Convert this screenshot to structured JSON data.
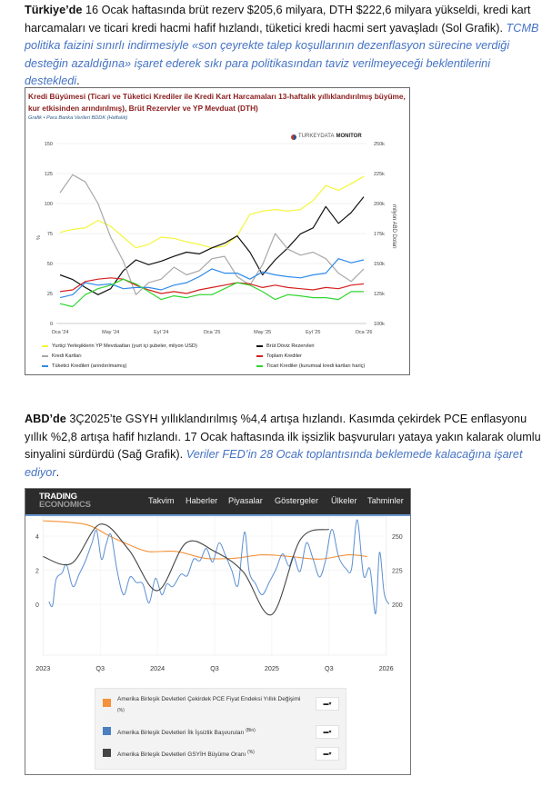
{
  "paragraph1": {
    "lead": "Türkiye’de",
    "text": " 16 Ocak haftasında brüt rezerv $205,6 milyara, DTH $222,6 milyara yükseldi, kredi kart harcamaları ve ticari kredi hacmi hafif hızlandı, tüketici kredi hacmi sert yavaşladı (Sol Grafik). ",
    "italic": "TCMB politika faizini sınırlı indirmesiyle «son çeyrekte talep koşullarının dezenflasyon sürecine verdiği desteğin azaldığına» işaret ederek sıkı para politikasından taviz verilmeyeceği beklentilerini destekledi",
    "end": "."
  },
  "paragraph2": {
    "lead": "ABD’de",
    "text": " 3Ç2025’te GSYH yıllıklandırılmış %4,4 artışa hızlandı. Kasımda çekirdek PCE enflasyonu yıllık %2,8 artışa hafif hızlandı. 17 Ocak haftasında ilk işsizlik başvuruları yataya yakın kalarak olumlu sinyalini sürdürdü (Sağ Grafik). ",
    "italic": "Veriler FED’in 28 Ocak toplantısında beklemede kalacağına işaret ediyor",
    "end": "."
  },
  "chart1_header": {
    "title": "Kredi Büyümesi (Ticari ve Tüketici Krediler ile Kredi Kart Harcamaları 13-haftalık yıllıklandırılmış büyüme, kur etkisinden arındırılmış), Brüt Rezervler ve YP Mevduat (DTH)",
    "subtitle": "Grafik • Para Banka Verileri BDDK (Haftalık)",
    "brand_light": "TURKEYDATA",
    "brand_bold": "MONITOR"
  },
  "chart2_header": {
    "logo_line1": "TRADING",
    "logo_line2": "ECONOMICS",
    "nav": [
      "Takvim",
      "Haberler",
      "Piyasalar",
      "Göstergeler",
      "Ülkeler",
      "Tahminler"
    ]
  },
  "chart_data": [
    {
      "type": "line",
      "ylabel": "%",
      "y2label": "milyon ABD Doları",
      "ylim": [
        0,
        150
      ],
      "y2lim": [
        100000,
        250000
      ],
      "yticks": [
        "0",
        "25",
        "50",
        "75",
        "100",
        "125",
        "150"
      ],
      "y2ticks": [
        "100k",
        "125k",
        "150k",
        "175k",
        "200k",
        "225k",
        "250k"
      ],
      "xticks": [
        {
          "x": "2024-01",
          "label": "Oca '24"
        },
        {
          "x": "2024-05",
          "label": "May '24"
        },
        {
          "x": "2024-09",
          "label": "Eyl '24"
        },
        {
          "x": "2025-01",
          "label": "Oca '25"
        },
        {
          "x": "2025-05",
          "label": "May '25"
        },
        {
          "x": "2025-09",
          "label": "Eyl '25"
        },
        {
          "x": "2026-01",
          "label": "Oca '26"
        }
      ],
      "grid": true,
      "legend": "bottom",
      "x": [
        "2024-01",
        "2024-02",
        "2024-03",
        "2024-04",
        "2024-05",
        "2024-06",
        "2024-07",
        "2024-08",
        "2024-09",
        "2024-10",
        "2024-11",
        "2024-12",
        "2025-01",
        "2025-02",
        "2025-03",
        "2025-04",
        "2025-05",
        "2025-06",
        "2025-07",
        "2025-08",
        "2025-09",
        "2025-10",
        "2025-11",
        "2025-12",
        "2026-01"
      ],
      "series": [
        {
          "name": "Yurtiçi Yerleşiklerin YP Mevduatları (yurt içi şubeler, milyon USD)",
          "color": "#f5f53a",
          "axis": "right",
          "values": [
            176000,
            178500,
            179700,
            186000,
            181000,
            172000,
            163000,
            166000,
            172000,
            171000,
            168000,
            166000,
            163000,
            164500,
            173000,
            191000,
            193700,
            195000,
            193700,
            195000,
            202500,
            215000,
            211000,
            216500,
            222600
          ]
        },
        {
          "name": "Brüt Döviz Rezervleri",
          "color": "#111111",
          "axis": "right",
          "values": [
            140500,
            136700,
            130000,
            124000,
            129000,
            144000,
            153000,
            149000,
            152000,
            156000,
            159500,
            158000,
            163000,
            167000,
            173000,
            159500,
            140500,
            153000,
            163000,
            174700,
            179700,
            197500,
            183500,
            192400,
            205600
          ]
        },
        {
          "name": "Kredi Kartları",
          "color": "#a8a8a8",
          "axis": "left",
          "values": [
            109,
            124,
            118,
            100,
            72,
            52,
            24,
            34,
            37,
            47,
            40.5,
            44,
            54,
            56,
            39,
            32,
            49,
            75,
            62,
            57,
            59.5,
            54,
            42,
            35,
            45.5
          ]
        },
        {
          "name": "Toplam Krediler",
          "color": "#d42020",
          "axis": "left",
          "values": [
            26.6,
            28,
            35,
            37,
            38,
            37,
            32,
            28,
            25,
            26.6,
            25,
            28,
            30,
            32,
            34,
            33,
            30,
            32,
            30,
            29,
            28,
            30,
            29,
            32,
            33
          ]
        },
        {
          "name": "Tüketici Kredileri (arındırılmamış)",
          "color": "#2f8ae8",
          "axis": "left",
          "values": [
            21.5,
            24,
            34,
            32,
            33,
            29,
            30,
            30,
            28,
            32,
            34,
            39,
            45.5,
            42,
            42,
            37,
            43,
            40.5,
            39,
            38,
            40.5,
            42,
            54,
            50.6,
            53
          ]
        },
        {
          "name": "Ticari Krediler (kurumsal kredi kartları hariç)",
          "color": "#2fd62f",
          "axis": "left",
          "values": [
            16.5,
            14,
            24,
            29,
            32,
            37,
            33,
            26.6,
            20,
            23,
            21.5,
            24,
            24,
            29,
            34,
            32,
            26.6,
            20,
            24,
            23,
            21.5,
            21.5,
            20,
            26.6,
            26.6
          ]
        }
      ]
    },
    {
      "type": "line",
      "ylim": [
        -1,
        5.5
      ],
      "y2lim": [
        190,
        262
      ],
      "yticks": [
        "0",
        "2",
        "4"
      ],
      "y2ticks": [
        "200",
        "225",
        "250"
      ],
      "xticks": [
        {
          "x": "2023-01",
          "label": "2023"
        },
        {
          "x": "2023-07",
          "label": "Q3"
        },
        {
          "x": "2024-01",
          "label": "2024"
        },
        {
          "x": "2024-07",
          "label": "Q3"
        },
        {
          "x": "2025-01",
          "label": "2025"
        },
        {
          "x": "2025-07",
          "label": "Q3"
        },
        {
          "x": "2026-01",
          "label": "2026"
        }
      ],
      "grid": true,
      "legend": "bottom",
      "series": [
        {
          "name": "Amerika Birleşik Devletleri Çekirdek PCE Fiyat Endeksi Yıllık Değişimi",
          "unit": "(%)",
          "color": "#f4913a",
          "axis": "left",
          "x": [
            "2023-01",
            "2023-04",
            "2023-06",
            "2023-08",
            "2023-10",
            "2023-12",
            "2024-03",
            "2024-06",
            "2024-09",
            "2024-12",
            "2025-03",
            "2025-06",
            "2025-09",
            "2025-11"
          ],
          "values": [
            4.9,
            4.8,
            4.6,
            4.0,
            3.5,
            3.1,
            3.1,
            2.7,
            2.7,
            2.9,
            2.8,
            2.65,
            2.9,
            2.8
          ]
        },
        {
          "name": "Amerika Birleşik Devletleri İlk İşsizlik Başvuruları",
          "unit": "(Bin)",
          "color": "#5b8fd0",
          "axis": "right",
          "x": [
            "2023-01-20",
            "2023-02-01",
            "2023-02-12",
            "2023-03-01",
            "2023-03-15",
            "2023-04-05",
            "2023-04-25",
            "2023-05-15",
            "2023-06-05",
            "2023-06-20",
            "2023-07-05",
            "2023-07-20",
            "2023-08-05",
            "2023-08-25",
            "2023-09-15",
            "2023-10-05",
            "2023-10-25",
            "2023-11-15",
            "2023-12-05",
            "2023-12-25",
            "2024-01-15",
            "2024-02-01",
            "2024-02-20",
            "2024-03-15",
            "2024-04-05",
            "2024-04-25",
            "2024-05-15",
            "2024-06-05",
            "2024-06-25",
            "2024-07-15",
            "2024-08-05",
            "2024-08-25",
            "2024-09-15",
            "2024-10-05",
            "2024-10-20",
            "2024-11-10",
            "2024-12-01",
            "2024-12-25",
            "2025-01-15",
            "2025-02-05",
            "2025-02-25",
            "2025-03-10",
            "2025-03-30",
            "2025-04-20",
            "2025-05-10",
            "2025-06-01",
            "2025-06-20",
            "2025-07-10",
            "2025-08-01",
            "2025-08-25",
            "2025-09-12",
            "2025-09-30",
            "2025-10-20",
            "2025-11-10",
            "2025-11-28",
            "2025-12-10",
            "2025-12-25",
            "2026-01-10"
          ],
          "values": [
            202,
            199,
            218,
            223,
            229,
            213,
            222,
            232,
            245,
            254,
            233,
            244,
            251,
            224,
            207,
            220,
            216,
            215,
            201,
            219,
            207,
            215,
            213,
            222,
            221,
            233,
            232,
            241,
            231,
            245,
            236,
            225,
            214,
            253,
            224,
            215,
            207,
            217,
            226,
            237,
            228,
            235,
            224,
            245,
            234,
            220,
            232,
            255,
            235,
            226,
            226,
            262,
            221,
            226,
            193,
            238,
            208,
            200
          ]
        },
        {
          "name": "Amerika Birleşik Devletleri GSYİH Büyüme Oranı",
          "unit": "(%)",
          "color": "#444444",
          "axis": "left",
          "x": [
            "2023-01",
            "2023-04",
            "2023-07",
            "2023-10",
            "2024-01",
            "2024-04",
            "2024-07",
            "2024-10",
            "2025-01",
            "2025-04",
            "2025-07"
          ],
          "values": [
            2.8,
            2.4,
            4.7,
            3.2,
            0.8,
            3.6,
            3.1,
            1.9,
            -0.6,
            3.8,
            4.4
          ]
        }
      ]
    }
  ]
}
